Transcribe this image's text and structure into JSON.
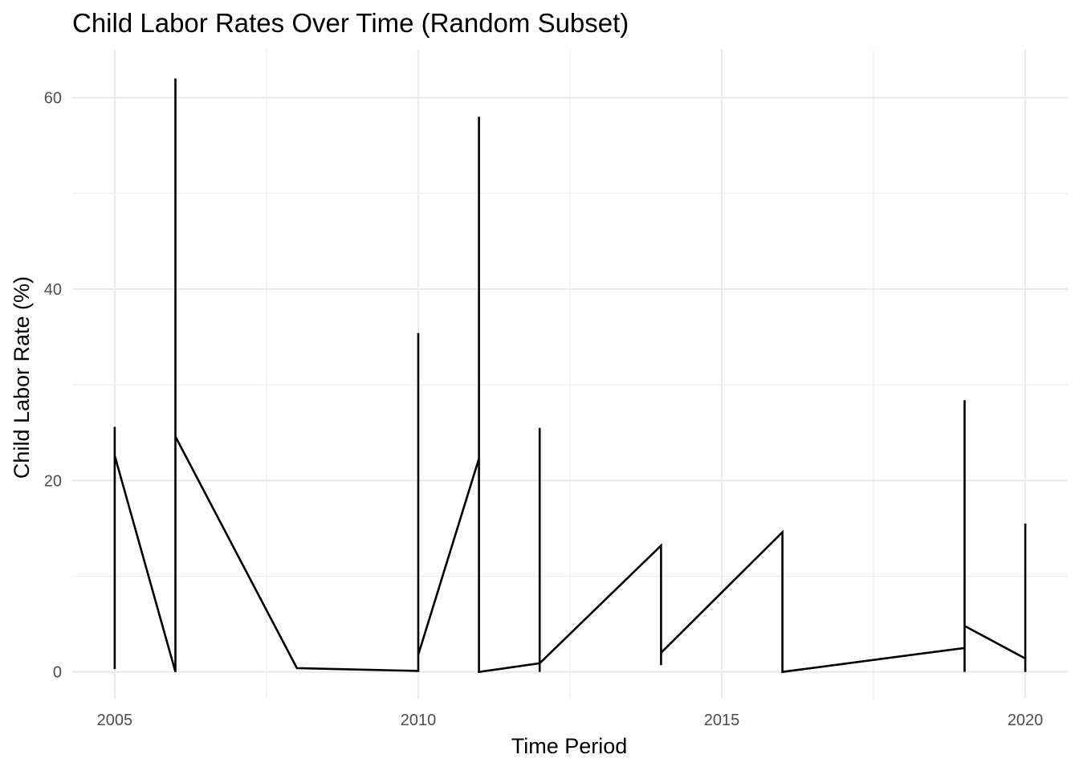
{
  "chart_data": {
    "type": "line",
    "title": "Child Labor Rates Over Time (Random Subset)",
    "xlabel": "Time Period",
    "ylabel": "Child Labor Rate (%)",
    "xlim": [
      2004.3,
      2020.7
    ],
    "ylim": [
      -2.8,
      65
    ],
    "x_ticks": [
      2005,
      2010,
      2015,
      2020
    ],
    "y_ticks": [
      0,
      20,
      40,
      60
    ],
    "grid": true,
    "line_color": "#000000",
    "grid_color": "#ebebeb",
    "series": [
      {
        "points": [
          [
            2005,
            0.3
          ],
          [
            2005,
            25.6
          ],
          [
            2005,
            22.6
          ],
          [
            2006,
            0.0
          ],
          [
            2006,
            62.0
          ],
          [
            2006,
            24.6
          ],
          [
            2008,
            0.4
          ],
          [
            2010,
            0.1
          ],
          [
            2010,
            35.4
          ],
          [
            2010,
            1.8
          ],
          [
            2011,
            22.3
          ],
          [
            2011,
            58.0
          ],
          [
            2011,
            0.0
          ],
          [
            2012,
            0.9
          ],
          [
            2012,
            0.0
          ],
          [
            2012,
            25.5
          ],
          [
            2012,
            0.9
          ],
          [
            2014,
            13.2
          ],
          [
            2014,
            0.7
          ],
          [
            2014,
            2.0
          ],
          [
            2016,
            14.6
          ],
          [
            2016,
            0.0
          ],
          [
            2019,
            2.5
          ],
          [
            2019,
            0.0
          ],
          [
            2019,
            28.4
          ],
          [
            2019,
            4.8
          ],
          [
            2020,
            1.4
          ],
          [
            2020,
            0.0
          ],
          [
            2020,
            15.5
          ]
        ]
      }
    ]
  }
}
